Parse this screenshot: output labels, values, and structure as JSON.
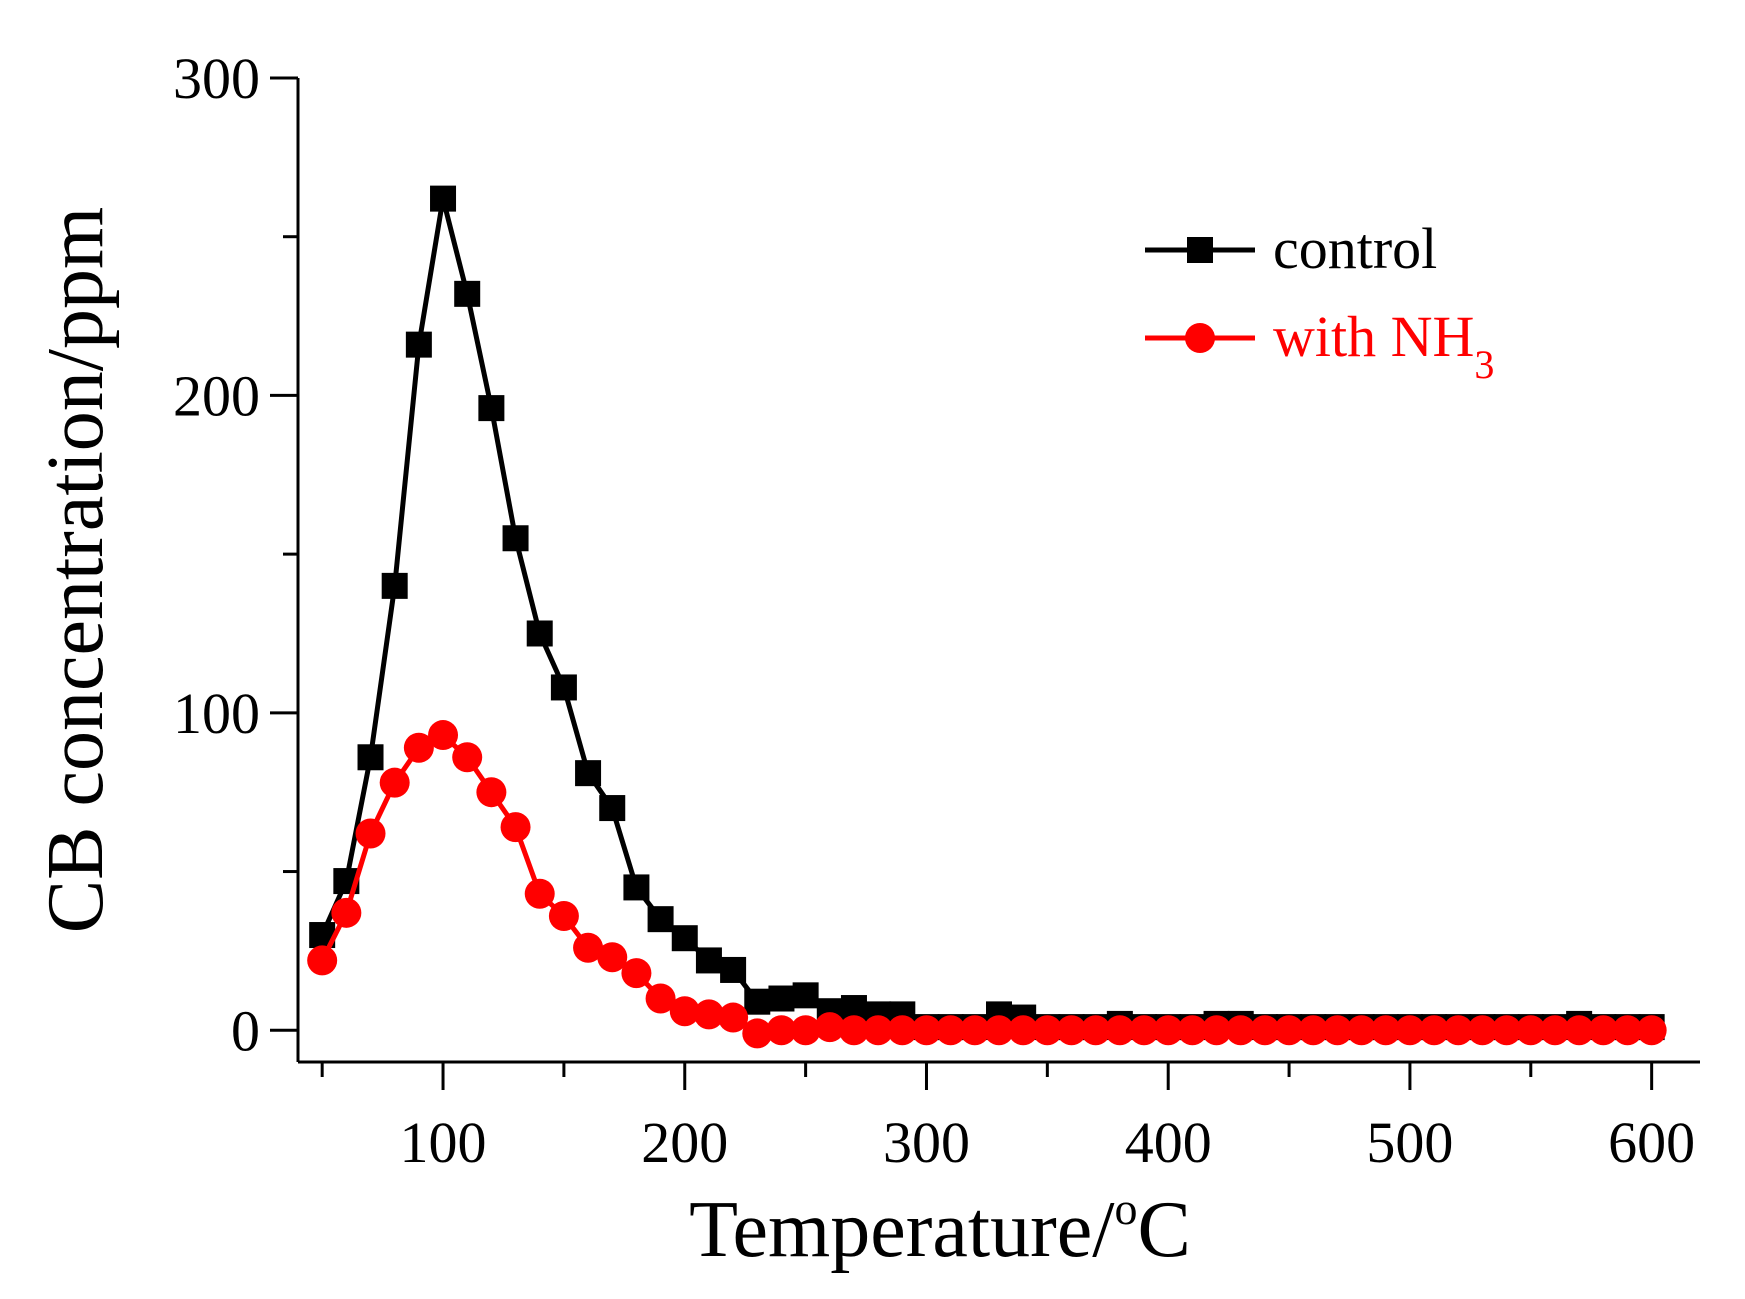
{
  "chart_data": {
    "type": "line",
    "title": "",
    "xlabel_main": "Temperature/",
    "xlabel_sup": "o",
    "xlabel_tail": "C",
    "ylabel": "CB concentration/ppm",
    "xlim": [
      40,
      620
    ],
    "ylim": [
      -10,
      300
    ],
    "xticks": [
      100,
      200,
      300,
      400,
      500,
      600
    ],
    "xtick_labels": [
      "100",
      "200",
      "300",
      "400",
      "500",
      "600"
    ],
    "yticks": [
      0,
      100,
      200,
      300
    ],
    "ytick_labels": [
      "0",
      "100",
      "200",
      "300"
    ],
    "legend_position": "top-right",
    "series": [
      {
        "name": "control",
        "legend_label": "control",
        "color": "#000000",
        "marker": "square",
        "x": [
          50,
          60,
          70,
          80,
          90,
          100,
          110,
          120,
          130,
          140,
          150,
          160,
          170,
          180,
          190,
          200,
          210,
          220,
          230,
          240,
          250,
          260,
          270,
          280,
          290,
          300,
          310,
          320,
          330,
          340,
          350,
          360,
          370,
          380,
          390,
          400,
          410,
          420,
          430,
          440,
          450,
          460,
          470,
          480,
          490,
          500,
          510,
          520,
          530,
          540,
          550,
          560,
          570,
          580,
          590,
          600
        ],
        "values": [
          30,
          47,
          86,
          140,
          216,
          262,
          232,
          196,
          155,
          125,
          108,
          81,
          70,
          45,
          35,
          29,
          22,
          19,
          9,
          10,
          11,
          6,
          7,
          5,
          5,
          1,
          1,
          1,
          5,
          4,
          1,
          1,
          1,
          2,
          1,
          1,
          1,
          2,
          2,
          1,
          1,
          1,
          1,
          1,
          1,
          1,
          1,
          1,
          1,
          1,
          1,
          1,
          2,
          1,
          1,
          1
        ]
      },
      {
        "name": "with NH3",
        "legend_label": "with NH",
        "legend_sub": "3",
        "color": "#ff0000",
        "marker": "circle",
        "x": [
          50,
          60,
          70,
          80,
          90,
          100,
          110,
          120,
          130,
          140,
          150,
          160,
          170,
          180,
          190,
          200,
          210,
          220,
          230,
          240,
          250,
          260,
          270,
          280,
          290,
          300,
          310,
          320,
          330,
          340,
          350,
          360,
          370,
          380,
          390,
          400,
          410,
          420,
          430,
          440,
          450,
          460,
          470,
          480,
          490,
          500,
          510,
          520,
          530,
          540,
          550,
          560,
          570,
          580,
          590,
          600
        ],
        "values": [
          22,
          37,
          62,
          78,
          89,
          93,
          86,
          75,
          64,
          43,
          36,
          26,
          23,
          18,
          10,
          6,
          5,
          4,
          -1,
          0,
          0,
          1,
          0,
          0,
          0,
          0,
          0,
          0,
          0,
          0,
          0,
          0,
          0,
          0,
          0,
          0,
          0,
          0,
          0,
          0,
          0,
          0,
          0,
          0,
          0,
          0,
          0,
          0,
          0,
          0,
          0,
          0,
          0,
          0,
          0,
          0
        ]
      }
    ]
  }
}
